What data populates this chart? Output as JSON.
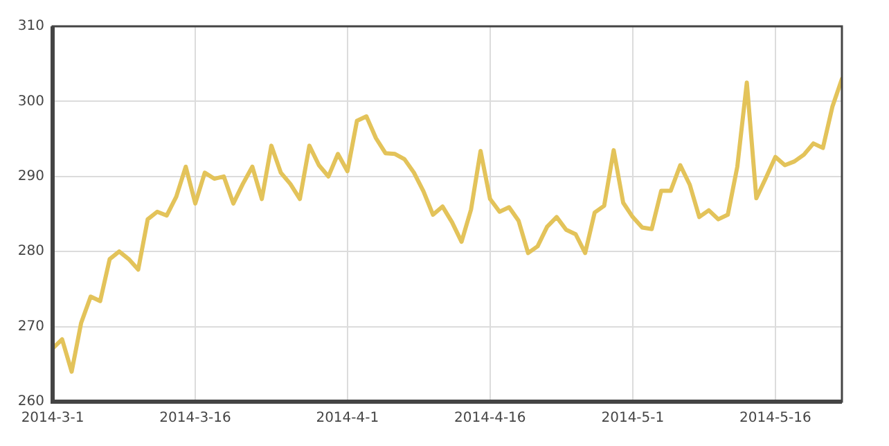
{
  "chart_data": {
    "type": "line",
    "x": [
      "2014-03-01",
      "2014-03-02",
      "2014-03-03",
      "2014-03-04",
      "2014-03-05",
      "2014-03-06",
      "2014-03-07",
      "2014-03-08",
      "2014-03-09",
      "2014-03-10",
      "2014-03-11",
      "2014-03-12",
      "2014-03-13",
      "2014-03-14",
      "2014-03-15",
      "2014-03-16",
      "2014-03-17",
      "2014-03-18",
      "2014-03-19",
      "2014-03-20",
      "2014-03-21",
      "2014-03-22",
      "2014-03-23",
      "2014-03-24",
      "2014-03-25",
      "2014-03-26",
      "2014-03-27",
      "2014-03-28",
      "2014-03-29",
      "2014-03-30",
      "2014-03-31",
      "2014-04-01",
      "2014-04-02",
      "2014-04-03",
      "2014-04-04",
      "2014-04-05",
      "2014-04-06",
      "2014-04-07",
      "2014-04-08",
      "2014-04-09",
      "2014-04-10",
      "2014-04-11",
      "2014-04-12",
      "2014-04-13",
      "2014-04-14",
      "2014-04-15",
      "2014-04-16",
      "2014-04-17",
      "2014-04-18",
      "2014-04-19",
      "2014-04-20",
      "2014-04-21",
      "2014-04-22",
      "2014-04-23",
      "2014-04-24",
      "2014-04-25",
      "2014-04-26",
      "2014-04-27",
      "2014-04-28",
      "2014-04-29",
      "2014-04-30",
      "2014-05-01",
      "2014-05-02",
      "2014-05-03",
      "2014-05-04",
      "2014-05-05",
      "2014-05-06",
      "2014-05-07",
      "2014-05-08",
      "2014-05-09",
      "2014-05-10",
      "2014-05-11",
      "2014-05-12",
      "2014-05-13",
      "2014-05-14",
      "2014-05-15",
      "2014-05-16",
      "2014-05-17",
      "2014-05-18",
      "2014-05-19",
      "2014-05-20",
      "2014-05-21",
      "2014-05-22",
      "2014-05-23"
    ],
    "series": [
      {
        "color": "#e3c35a",
        "values": [
          267.1,
          268.3,
          264,
          270.5,
          274,
          273.4,
          279,
          280,
          279,
          277.6,
          284.3,
          285.3,
          284.8,
          287.3,
          291.3,
          286.4,
          290.5,
          289.7,
          290,
          286.4,
          289,
          291.3,
          287,
          294.1,
          290.5,
          289,
          287,
          294.1,
          291.5,
          290,
          293,
          290.7,
          297.4,
          298,
          295.1,
          293.1,
          293,
          292.3,
          290.5,
          288,
          284.9,
          286,
          283.9,
          281.3,
          285.6,
          293.4,
          287,
          285.3,
          285.9,
          284.1,
          279.8,
          280.7,
          283.3,
          284.6,
          282.9,
          282.3,
          279.8,
          285.2,
          286.1,
          293.5,
          286.5,
          284.6,
          283.2,
          283,
          288.1,
          288.1,
          291.5,
          288.9,
          284.6,
          285.5,
          284.3,
          284.9,
          291.3,
          302.5,
          287.1,
          289.8,
          292.6,
          291.5,
          292,
          292.9,
          294.4,
          293.8,
          299.3,
          303
        ]
      }
    ],
    "xlim": [
      "2014-03-01",
      "2014-05-23"
    ],
    "xticks": [
      {
        "value": "2014-03-01",
        "label": "2014-3-1"
      },
      {
        "value": "2014-03-16",
        "label": "2014-3-16"
      },
      {
        "value": "2014-04-01",
        "label": "2014-4-1"
      },
      {
        "value": "2014-04-16",
        "label": "2014-4-16"
      },
      {
        "value": "2014-05-01",
        "label": "2014-5-1"
      },
      {
        "value": "2014-05-16",
        "label": "2014-5-16"
      }
    ],
    "ylim": [
      260,
      310
    ],
    "yticks": [
      260,
      270,
      280,
      290,
      300,
      310
    ],
    "grid": true,
    "marker": "none",
    "line_style": "solid"
  }
}
